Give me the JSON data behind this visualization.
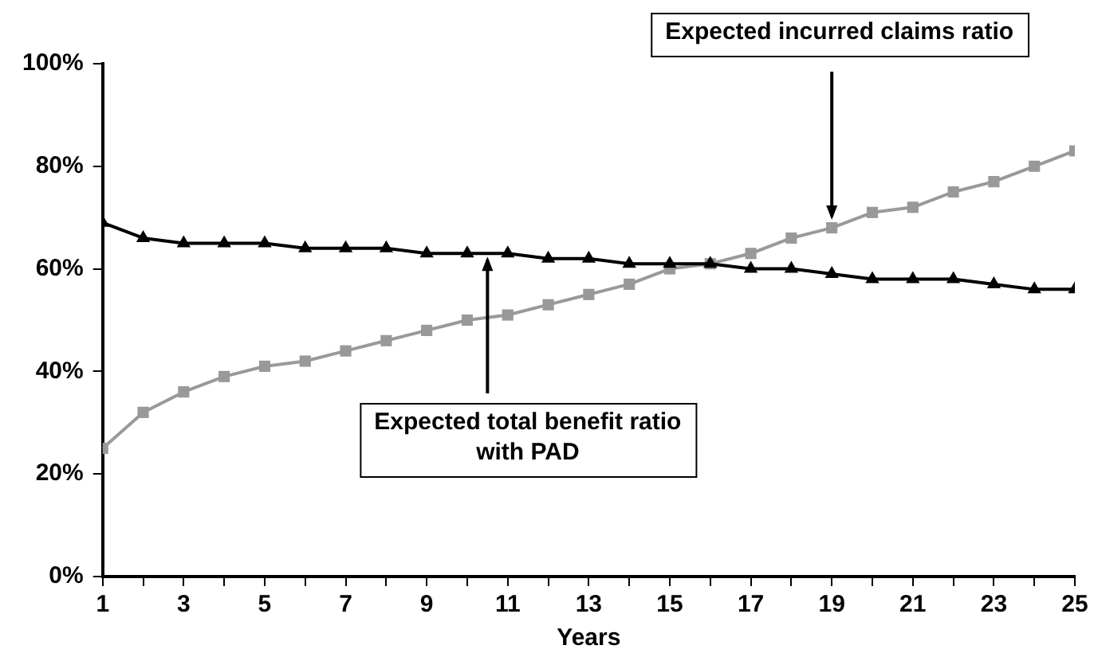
{
  "chart_data": {
    "type": "line",
    "xlabel": "Years",
    "x": [
      1,
      2,
      3,
      4,
      5,
      6,
      7,
      8,
      9,
      10,
      11,
      12,
      13,
      14,
      15,
      16,
      17,
      18,
      19,
      20,
      21,
      22,
      23,
      24,
      25
    ],
    "series": [
      {
        "color": "#999999",
        "marker": "square",
        "values": [
          25,
          32,
          36,
          39,
          41,
          42,
          44,
          46,
          48,
          50,
          51,
          53,
          55,
          57,
          60,
          61,
          63,
          66,
          68,
          71,
          72,
          75,
          77,
          80,
          83
        ]
      },
      {
        "color": "#000000",
        "marker": "triangle",
        "values": [
          69,
          66,
          65,
          65,
          65,
          64,
          64,
          64,
          63,
          63,
          63,
          62,
          62,
          61,
          61,
          61,
          60,
          60,
          59,
          58,
          58,
          58,
          57,
          56,
          56
        ]
      }
    ],
    "xlim": [
      1,
      25
    ],
    "xticks": [
      1,
      {
        "value": 2,
        "label": null
      },
      3,
      {
        "value": 4,
        "label": null
      },
      5,
      {
        "value": 6,
        "label": null
      },
      7,
      {
        "value": 8,
        "label": null
      },
      9,
      {
        "value": 10,
        "label": null
      },
      11,
      {
        "value": 12,
        "label": null
      },
      13,
      {
        "value": 14,
        "label": null
      },
      15,
      {
        "value": 16,
        "label": null
      },
      17,
      {
        "value": 18,
        "label": null
      },
      19,
      {
        "value": 20,
        "label": null
      },
      21,
      {
        "value": 22,
        "label": null
      },
      23,
      {
        "value": 24,
        "label": null
      },
      25
    ],
    "ylim": [
      0,
      100
    ],
    "yticks": [
      {
        "value": 0,
        "label": "0%"
      },
      {
        "value": 20,
        "label": "20%"
      },
      {
        "value": 40,
        "label": "40%"
      },
      {
        "value": 60,
        "label": "60%"
      },
      {
        "value": 80,
        "label": "80%"
      },
      {
        "value": 100,
        "label": "100%"
      }
    ],
    "grid": false,
    "legend": false,
    "line_style": "solid",
    "annotations": [
      {
        "text": "Expected incurred claims ratio",
        "x": 19,
        "y": 68
      },
      {
        "text": "Expected total benefit ratio\nwith PAD",
        "x": 10.5,
        "y": 63
      }
    ]
  }
}
